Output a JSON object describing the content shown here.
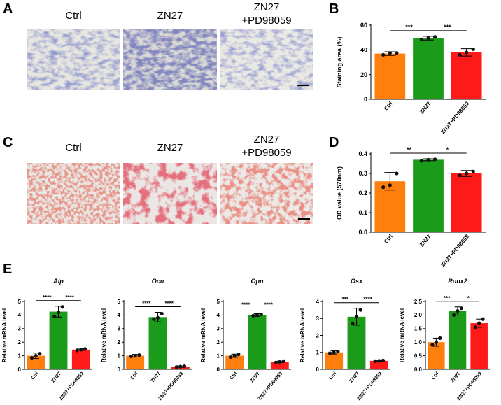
{
  "figure": {
    "panel_letters": {
      "a": "A",
      "b": "B",
      "c": "C",
      "d": "D",
      "e": "E"
    },
    "image_columns_a": [
      "Ctrl",
      "ZN27",
      "ZN27\n+PD98059"
    ],
    "image_columns_c": [
      "Ctrl",
      "ZN27",
      "ZN27\n+PD98059"
    ],
    "colors": {
      "ctrl": "#ff7f0e",
      "zn27": "#1a9b1a",
      "pd": "#ff1a1a"
    }
  },
  "chart_data": [
    {
      "id": "B",
      "type": "bar",
      "categories": [
        "Ctrl",
        "ZN27",
        "ZN27+PD98059"
      ],
      "values": [
        37,
        49.5,
        38
      ],
      "errors": [
        1.5,
        1.5,
        3
      ],
      "points": [
        [
          36,
          37.5,
          37.5
        ],
        [
          48.5,
          49.5,
          50.5
        ],
        [
          36,
          38,
          40.5
        ]
      ],
      "ylabel": "Staining area (%)",
      "ylim": [
        0,
        60
      ],
      "yticks": [
        0,
        20,
        40,
        60
      ],
      "ytick_labels": [
        "0",
        "20",
        "40",
        "60"
      ],
      "significance": [
        {
          "from": 0,
          "to": 1,
          "label": "***"
        },
        {
          "from": 1,
          "to": 2,
          "label": "***"
        }
      ]
    },
    {
      "id": "D",
      "type": "bar",
      "categories": [
        "Ctrl",
        "ZN27",
        "ZN27+PD98059"
      ],
      "values": [
        0.26,
        0.37,
        0.3
      ],
      "errors": [
        0.045,
        0.005,
        0.015
      ],
      "points": [
        [
          0.23,
          0.24,
          0.3
        ],
        [
          0.365,
          0.37,
          0.372
        ],
        [
          0.29,
          0.3,
          0.31
        ]
      ],
      "ylabel": "OD value (570nm)",
      "ylim": [
        0,
        0.4
      ],
      "yticks": [
        0,
        0.1,
        0.2,
        0.3,
        0.4
      ],
      "ytick_labels": [
        "0.0",
        "0.1",
        "0.2",
        "0.3",
        "0.4"
      ],
      "significance": [
        {
          "from": 0,
          "to": 1,
          "label": "**"
        },
        {
          "from": 1,
          "to": 2,
          "label": "*"
        }
      ]
    },
    {
      "id": "E1",
      "type": "bar",
      "title": "Alp",
      "categories": [
        "Ctrl",
        "ZN27",
        "ZN27+PD98059"
      ],
      "values": [
        1.0,
        4.25,
        1.45
      ],
      "errors": [
        0.2,
        0.4,
        0.05
      ],
      "points": [
        [
          0.85,
          1.0,
          1.15
        ],
        [
          3.9,
          4.2,
          4.6
        ],
        [
          1.4,
          1.45,
          1.5
        ]
      ],
      "ylabel": "Relative mRNA level",
      "ylim": [
        0,
        5
      ],
      "yticks": [
        0,
        1,
        2,
        3,
        4,
        5
      ],
      "ytick_labels": [
        "0",
        "1",
        "2",
        "3",
        "4",
        "5"
      ],
      "significance": [
        {
          "from": 0,
          "to": 1,
          "label": "****"
        },
        {
          "from": 1,
          "to": 2,
          "label": "****"
        }
      ]
    },
    {
      "id": "E2",
      "type": "bar",
      "title": "Ocn",
      "categories": [
        "Ctrl",
        "ZN27",
        "ZN27+PD98059"
      ],
      "values": [
        1.0,
        3.85,
        0.2
      ],
      "errors": [
        0.1,
        0.35,
        0.05
      ],
      "points": [
        [
          0.95,
          1.0,
          1.05
        ],
        [
          3.7,
          3.8,
          4.1
        ],
        [
          0.17,
          0.2,
          0.23
        ]
      ],
      "ylabel": "Relative mRNA level",
      "ylim": [
        0,
        5
      ],
      "yticks": [
        0,
        1,
        2,
        3,
        4,
        5
      ],
      "ytick_labels": [
        "0",
        "1",
        "2",
        "3",
        "4",
        "5"
      ],
      "significance": [
        {
          "from": 0,
          "to": 1,
          "label": "****"
        },
        {
          "from": 1,
          "to": 2,
          "label": "****"
        }
      ]
    },
    {
      "id": "E3",
      "type": "bar",
      "title": "Opn",
      "categories": [
        "Ctrl",
        "ZN27",
        "ZN27+PD98059"
      ],
      "values": [
        1.0,
        4.0,
        0.55
      ],
      "errors": [
        0.12,
        0.1,
        0.05
      ],
      "points": [
        [
          0.9,
          1.0,
          1.1
        ],
        [
          3.95,
          4.0,
          4.05
        ],
        [
          0.5,
          0.55,
          0.6
        ]
      ],
      "ylabel": "Relative mRNA level",
      "ylim": [
        0,
        5
      ],
      "yticks": [
        0,
        1,
        2,
        3,
        4,
        5
      ],
      "ytick_labels": [
        "0",
        "1",
        "2",
        "3",
        "4",
        "5"
      ],
      "significance": [
        {
          "from": 0,
          "to": 1,
          "label": "****"
        },
        {
          "from": 1,
          "to": 2,
          "label": "****"
        }
      ]
    },
    {
      "id": "E4",
      "type": "bar",
      "title": "Osx",
      "categories": [
        "Ctrl",
        "ZN27",
        "ZN27+PD98059"
      ],
      "values": [
        1.0,
        3.1,
        0.5
      ],
      "errors": [
        0.1,
        0.5,
        0.03
      ],
      "points": [
        [
          0.95,
          1.0,
          1.05
        ],
        [
          2.7,
          3.1,
          3.5
        ],
        [
          0.48,
          0.5,
          0.52
        ]
      ],
      "ylabel": "Relative mRNA level",
      "ylim": [
        0,
        4
      ],
      "yticks": [
        0,
        1,
        2,
        3,
        4
      ],
      "ytick_labels": [
        "0",
        "1",
        "2",
        "3",
        "4"
      ],
      "significance": [
        {
          "from": 0,
          "to": 1,
          "label": "***"
        },
        {
          "from": 1,
          "to": 2,
          "label": "****"
        }
      ]
    },
    {
      "id": "E5",
      "type": "bar",
      "title": "Runx2",
      "categories": [
        "Ctrl",
        "ZN27",
        "ZN27+PD98059"
      ],
      "values": [
        1.0,
        2.15,
        1.7
      ],
      "errors": [
        0.15,
        0.15,
        0.15
      ],
      "points": [
        [
          0.9,
          1.0,
          1.15
        ],
        [
          2.0,
          2.15,
          2.25
        ],
        [
          1.55,
          1.7,
          1.85
        ]
      ],
      "ylabel": "Relative mRNA level",
      "ylim": [
        0,
        2.5
      ],
      "yticks": [
        0,
        0.5,
        1,
        1.5,
        2,
        2.5
      ],
      "ytick_labels": [
        "0.0",
        "0.5",
        "1.0",
        "1.5",
        "2.0",
        "2.5"
      ],
      "significance": [
        {
          "from": 0,
          "to": 1,
          "label": "***"
        },
        {
          "from": 1,
          "to": 2,
          "label": "*"
        }
      ]
    }
  ]
}
